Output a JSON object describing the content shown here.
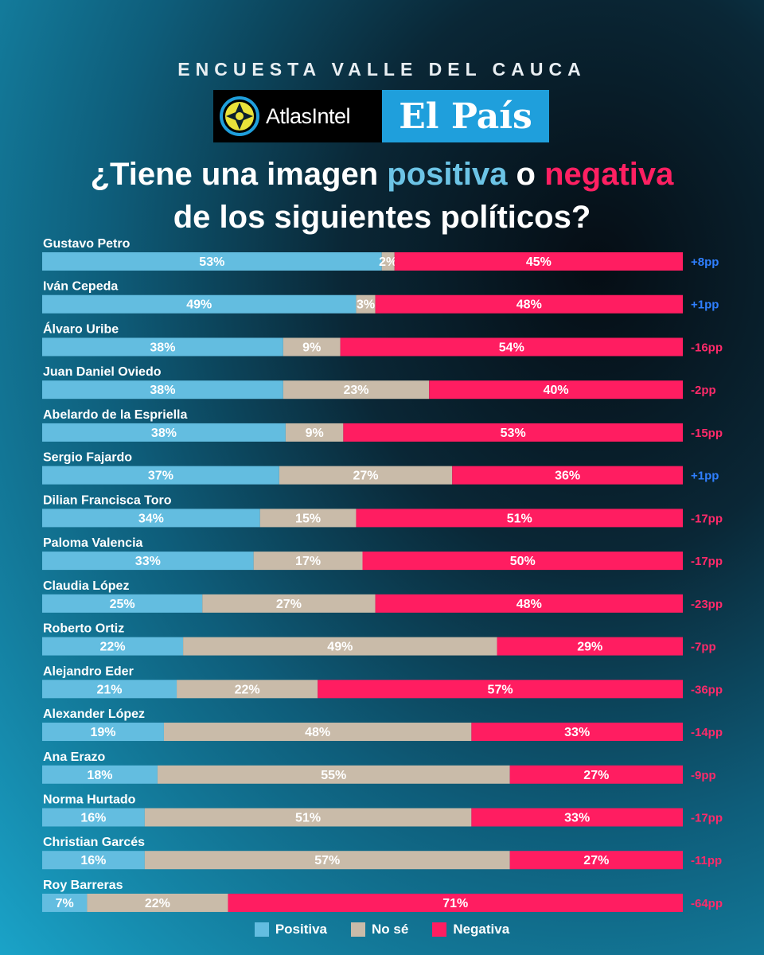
{
  "header": {
    "survey_title": "ENCUESTA VALLE DEL CAUCA",
    "logo_atlas": "AtlasIntel",
    "logo_elpais": "El País"
  },
  "question": {
    "part1": "¿Tiene una imagen ",
    "positive_word": "positiva",
    "part2": " o ",
    "negative_word": "negativa",
    "line2": "de los siguientes políticos?"
  },
  "colors": {
    "positive": "#63bde0",
    "unknown": "#c9bba9",
    "negative": "#ff1d61",
    "delta_positive": "#2f7fff",
    "delta_negative": "#ff2a6a"
  },
  "legend": {
    "positive": "Positiva",
    "unknown": "No sé",
    "negative": "Negativa"
  },
  "chart_data": {
    "type": "bar",
    "orientation": "horizontal",
    "stacked": true,
    "title": "¿Tiene una imagen positiva o negativa de los siguientes políticos?",
    "categories": [
      "Gustavo Petro",
      "Iván Cepeda",
      "Álvaro Uribe",
      "Juan Daniel Oviedo",
      "Abelardo de la Espriella",
      "Sergio Fajardo",
      "Dilian Francisca Toro",
      "Paloma Valencia",
      "Claudia López",
      "Roberto Ortiz",
      "Alejandro Eder",
      "Alexander López",
      "Ana Erazo",
      "Norma Hurtado",
      "Christian Garcés",
      "Roy Barreras"
    ],
    "series": [
      {
        "name": "Positiva",
        "values": [
          53,
          49,
          38,
          38,
          38,
          37,
          34,
          33,
          25,
          22,
          21,
          19,
          18,
          16,
          16,
          7
        ]
      },
      {
        "name": "No sé",
        "values": [
          2,
          3,
          9,
          23,
          9,
          27,
          15,
          17,
          27,
          49,
          22,
          48,
          55,
          51,
          57,
          22
        ]
      },
      {
        "name": "Negativa",
        "values": [
          45,
          48,
          54,
          40,
          53,
          36,
          51,
          50,
          48,
          29,
          57,
          33,
          27,
          33,
          27,
          71
        ]
      }
    ],
    "deltas": [
      "+8pp",
      "+1pp",
      "-16pp",
      "-2pp",
      "-15pp",
      "+1pp",
      "-17pp",
      "-17pp",
      "-23pp",
      "-7pp",
      "-36pp",
      "-14pp",
      "-9pp",
      "-17pp",
      "-11pp",
      "-64pp"
    ],
    "value_suffix": "%",
    "legend_position": "bottom",
    "grid": false
  }
}
